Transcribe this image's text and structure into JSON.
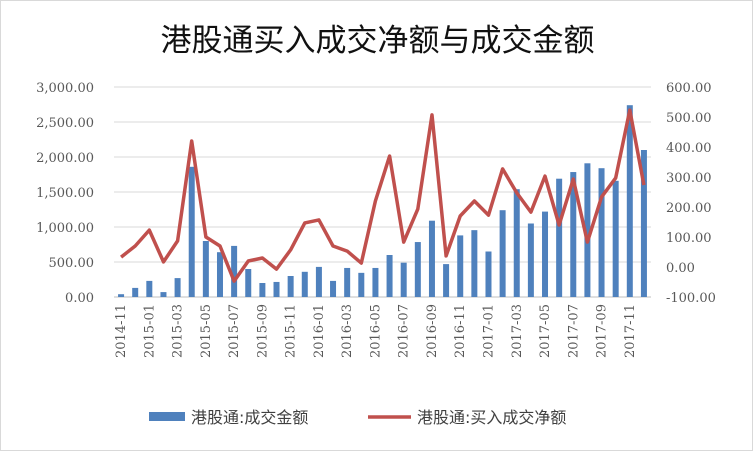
{
  "chart_data": {
    "type": "bar+line",
    "title": "港股通买入成交净额与成交金额",
    "categories": [
      "2014-11",
      "2014-12",
      "2015-01",
      "2015-02",
      "2015-03",
      "2015-04",
      "2015-05",
      "2015-06",
      "2015-07",
      "2015-08",
      "2015-09",
      "2015-10",
      "2015-11",
      "2015-12",
      "2016-01",
      "2016-02",
      "2016-03",
      "2016-04",
      "2016-05",
      "2016-06",
      "2016-07",
      "2016-08",
      "2016-09",
      "2016-10",
      "2016-11",
      "2016-12",
      "2017-01",
      "2017-02",
      "2017-03",
      "2017-04",
      "2017-05",
      "2017-06",
      "2017-07",
      "2017-08",
      "2017-09",
      "2017-10",
      "2017-11",
      "2017-12"
    ],
    "x_tick_labels": [
      "2014-11",
      "2015-01",
      "2015-03",
      "2015-05",
      "2015-07",
      "2015-09",
      "2015-11",
      "2016-01",
      "2016-03",
      "2016-05",
      "2016-07",
      "2016-09",
      "2016-11",
      "2017-01",
      "2017-03",
      "2017-05",
      "2017-07",
      "2017-09",
      "2017-11"
    ],
    "series": [
      {
        "name": "港股通:成交金额",
        "type": "bar",
        "axis": "left",
        "color": "#4f81bd",
        "values": [
          40,
          130,
          230,
          70,
          270,
          1860,
          800,
          640,
          730,
          400,
          200,
          215,
          300,
          360,
          430,
          230,
          415,
          345,
          415,
          600,
          490,
          785,
          1090,
          470,
          880,
          955,
          650,
          1240,
          1540,
          1050,
          1220,
          1690,
          1785,
          1910,
          1840,
          1660,
          2740,
          2100
        ]
      },
      {
        "name": "港股通:买入成交净额",
        "type": "line",
        "axis": "right",
        "color": "#c0504d",
        "values": [
          33,
          70,
          123,
          17,
          87,
          420,
          100,
          70,
          -47,
          20,
          30,
          -7,
          57,
          147,
          157,
          70,
          53,
          13,
          220,
          370,
          83,
          193,
          507,
          37,
          170,
          220,
          173,
          327,
          247,
          183,
          303,
          140,
          293,
          83,
          233,
          297,
          523,
          273
        ]
      }
    ],
    "left_axis": {
      "ylim": [
        0,
        3000
      ],
      "ticks": [
        "0.00",
        "500.00",
        "1,000.00",
        "1,500.00",
        "2,000.00",
        "2,500.00",
        "3,000.00"
      ]
    },
    "right_axis": {
      "ylim": [
        -100,
        600
      ],
      "ticks": [
        "-100.00",
        "0.00",
        "100.00",
        "200.00",
        "300.00",
        "400.00",
        "500.00",
        "600.00"
      ]
    },
    "grid": true,
    "legend": "bottom"
  }
}
